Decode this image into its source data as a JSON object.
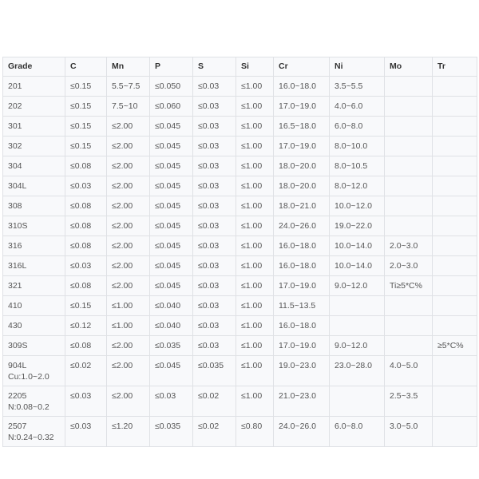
{
  "table": {
    "headers": [
      "Grade",
      "C",
      "Mn",
      "P",
      "S",
      "Si",
      "Cr",
      "Ni",
      "Mo",
      "Tr"
    ],
    "rows": [
      [
        "201",
        "≤0.15",
        "5.5~7.5",
        "≤0.050",
        "≤0.03",
        "≤1.00",
        "16.0~18.0",
        "3.5~5.5",
        "",
        ""
      ],
      [
        "202",
        "≤0.15",
        "7.5~10",
        "≤0.060",
        "≤0.03",
        "≤1.00",
        "17.0~19.0",
        "4.0~6.0",
        "",
        ""
      ],
      [
        "301",
        "≤0.15",
        "≤2.00",
        "≤0.045",
        "≤0.03",
        "≤1.00",
        "16.5~18.0",
        "6.0~8.0",
        "",
        ""
      ],
      [
        "302",
        "≤0.15",
        "≤2.00",
        "≤0.045",
        "≤0.03",
        "≤1.00",
        "17.0~19.0",
        "8.0~10.0",
        "",
        ""
      ],
      [
        "304",
        "≤0.08",
        "≤2.00",
        "≤0.045",
        "≤0.03",
        "≤1.00",
        "18.0~20.0",
        "8.0~10.5",
        "",
        ""
      ],
      [
        "304L",
        "≤0.03",
        "≤2.00",
        "≤0.045",
        "≤0.03",
        "≤1.00",
        "18.0~20.0",
        "8.0~12.0",
        "",
        ""
      ],
      [
        "308",
        "≤0.08",
        "≤2.00",
        "≤0.045",
        "≤0.03",
        "≤1.00",
        "18.0~21.0",
        "10.0~12.0",
        "",
        ""
      ],
      [
        "310S",
        "≤0.08",
        "≤2.00",
        "≤0.045",
        "≤0.03",
        "≤1.00",
        "24.0~26.0",
        "19.0~22.0",
        "",
        ""
      ],
      [
        "316",
        "≤0.08",
        "≤2.00",
        "≤0.045",
        "≤0.03",
        "≤1.00",
        "16.0~18.0",
        "10.0~14.0",
        "2.0~3.0",
        ""
      ],
      [
        "316L",
        "≤0.03",
        "≤2.00",
        "≤0.045",
        "≤0.03",
        "≤1.00",
        "16.0~18.0",
        "10.0~14.0",
        "2.0~3.0",
        ""
      ],
      [
        "321",
        "≤0.08",
        "≤2.00",
        "≤0.045",
        "≤0.03",
        "≤1.00",
        "17.0~19.0",
        "9.0~12.0",
        "Ti≥5*C%",
        ""
      ],
      [
        "410",
        "≤0.15",
        "≤1.00",
        "≤0.040",
        "≤0.03",
        "≤1.00",
        "11.5~13.5",
        "",
        "",
        ""
      ],
      [
        "430",
        "≤0.12",
        "≤1.00",
        "≤0.040",
        "≤0.03",
        "≤1.00",
        "16.0~18.0",
        "",
        "",
        ""
      ],
      [
        "309S",
        "≤0.08",
        "≤2.00",
        "≤0.035",
        "≤0.03",
        "≤1.00",
        "17.0~19.0",
        "9.0~12.0",
        "",
        "≥5*C%"
      ],
      [
        "904L\nCu:1.0~2.0",
        "≤0.02",
        "≤2.00",
        "≤0.045",
        "≤0.035",
        "≤1.00",
        "19.0~23.0",
        "23.0~28.0",
        "4.0~5.0",
        ""
      ],
      [
        "2205\nN:0.08~0.2",
        "≤0.03",
        "≤2.00",
        "≤0.03",
        "≤0.02",
        "≤1.00",
        "21.0~23.0",
        "",
        "2.5~3.5",
        ""
      ],
      [
        "2507\nN:0.24~0.32",
        "≤0.03",
        "≤1.20",
        "≤0.035",
        "≤0.02",
        "≤0.80",
        "24.0~26.0",
        "6.0~8.0",
        "3.0~5.0",
        ""
      ]
    ]
  }
}
